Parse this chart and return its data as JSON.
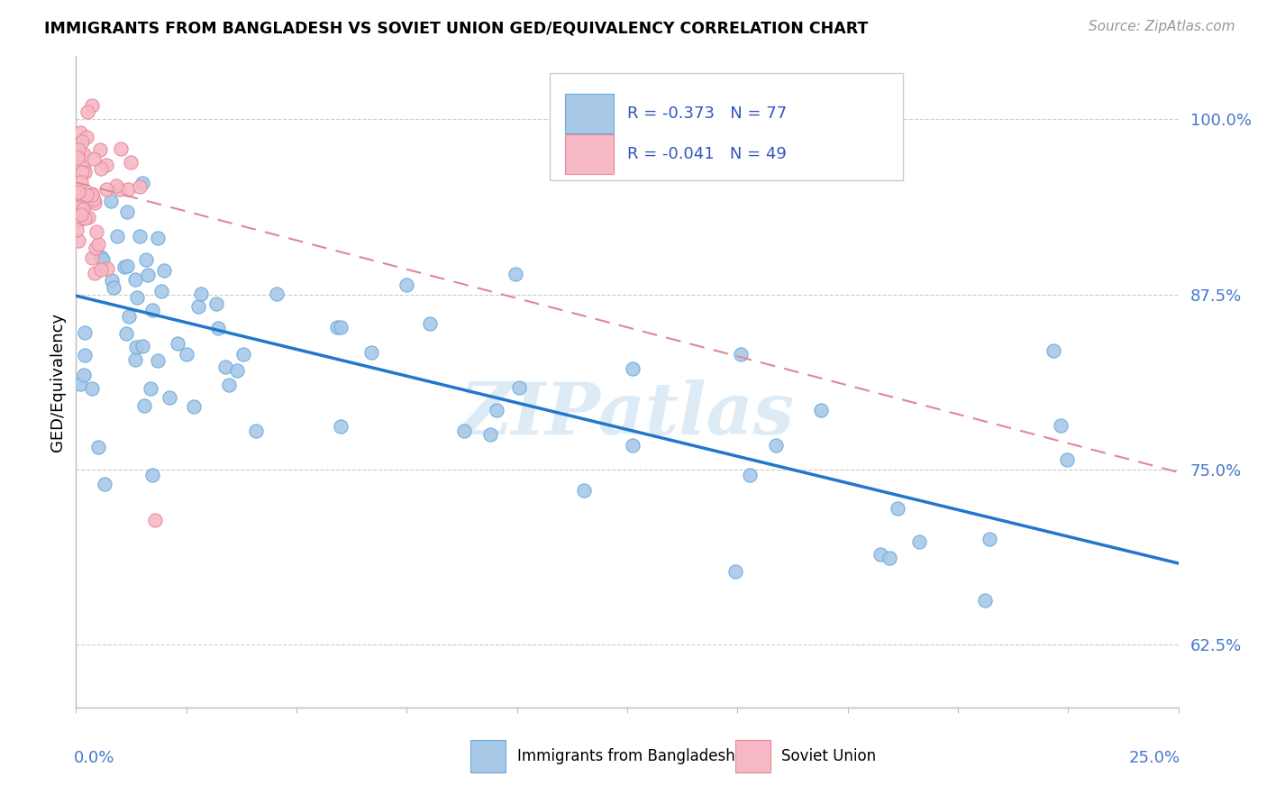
{
  "title": "IMMIGRANTS FROM BANGLADESH VS SOVIET UNION GED/EQUIVALENCY CORRELATION CHART",
  "source": "Source: ZipAtlas.com",
  "ylabel": "GED/Equivalency",
  "ytick_vals": [
    0.625,
    0.75,
    0.875,
    1.0
  ],
  "ytick_labels": [
    "62.5%",
    "75.0%",
    "87.5%",
    "100.0%"
  ],
  "xlim": [
    0.0,
    0.25
  ],
  "ylim": [
    0.58,
    1.045
  ],
  "blue_color": "#a8c8e8",
  "blue_edge_color": "#6aabdb",
  "blue_line_color": "#2277cc",
  "pink_color": "#f5b8c4",
  "pink_edge_color": "#e88898",
  "pink_line_color": "#dd8898",
  "legend_text_color": "#3355bb",
  "axis_label_color": "#4477cc",
  "watermark_color": "#c5dff0",
  "legend_blue_label": "R = -0.373   N = 77",
  "legend_pink_label": "R = -0.041   N = 49",
  "bottom_legend_blue": "Immigrants from Bangladesh",
  "bottom_legend_pink": "Soviet Union",
  "blue_line_x0": 0.0,
  "blue_line_y0": 0.874,
  "blue_line_x1": 0.25,
  "blue_line_y1": 0.683,
  "pink_line_x0": 0.0,
  "pink_line_y0": 0.955,
  "pink_line_x1": 0.25,
  "pink_line_y1": 0.748
}
